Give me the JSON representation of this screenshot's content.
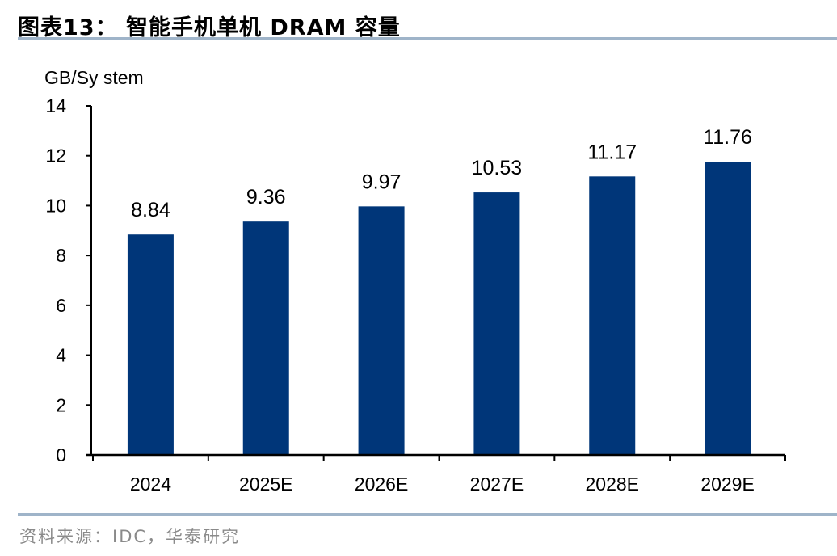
{
  "title": "图表13： 智能手机单机 DRAM 容量",
  "source": "资料来源：IDC，华泰研究",
  "colors": {
    "bar": "#003679",
    "rule": "#9fb4c9",
    "axis": "#000000"
  },
  "chart_data": {
    "type": "bar",
    "title": "图表13： 智能手机单机 DRAM 容量",
    "ylabel": "GB/Sy stem",
    "xlabel": "",
    "categories": [
      "2024",
      "2025E",
      "2026E",
      "2027E",
      "2028E",
      "2029E"
    ],
    "values": [
      8.84,
      9.36,
      9.97,
      10.53,
      11.17,
      11.76
    ],
    "data_labels": [
      "8.84",
      "9.36",
      "9.97",
      "10.53",
      "11.17",
      "11.76"
    ],
    "ylim": [
      0,
      14
    ],
    "yticks": [
      0,
      2,
      4,
      6,
      8,
      10,
      12,
      14
    ],
    "grid": false,
    "legend": "none"
  }
}
